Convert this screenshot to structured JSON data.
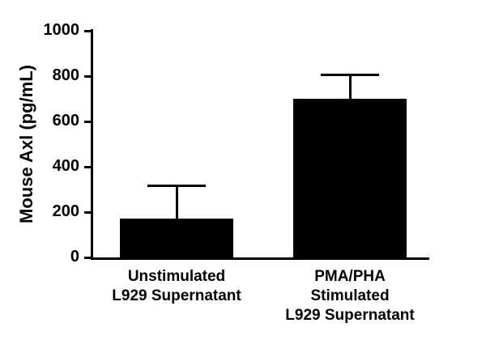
{
  "chart_data": {
    "type": "bar",
    "title": "",
    "xlabel": "",
    "ylabel": "Mouse Axl (pg/mL)",
    "ylim": [
      0,
      1000
    ],
    "yticks": [
      0,
      200,
      400,
      600,
      800,
      1000
    ],
    "categories": [
      "Unstimulated L929 Supernatant",
      "PMA/PHA Stimulated L929 Supernatant"
    ],
    "category_lines": [
      [
        "Unstimulated",
        "L929 Supernatant"
      ],
      [
        "PMA/PHA",
        "Stimulated",
        "L929 Supernatant"
      ]
    ],
    "values": [
      170,
      700
    ],
    "error_top_values": [
      320,
      810
    ],
    "bar_color": "#000000",
    "axis_color": "#000000",
    "background_color": "#ffffff",
    "grid": false,
    "legend": false
  }
}
